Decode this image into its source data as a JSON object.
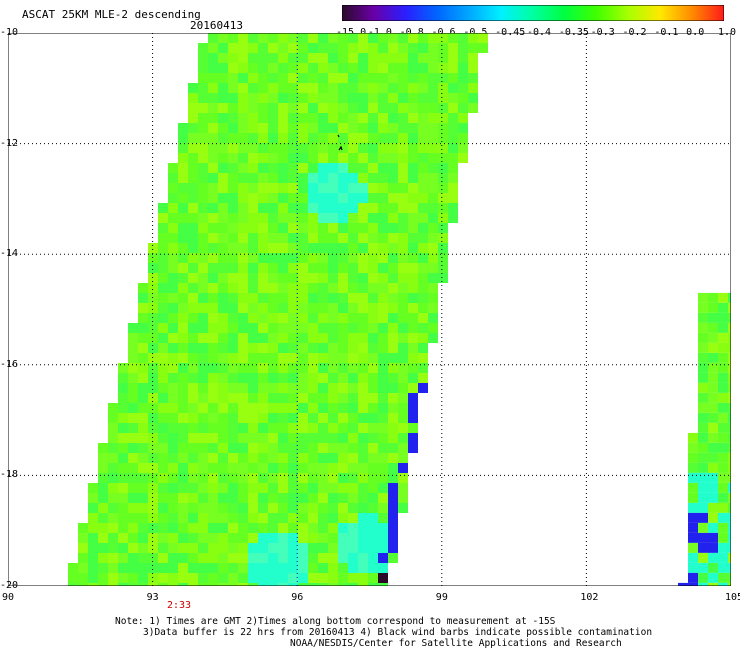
{
  "header": {
    "title": "ASCAT 25KM MLE-2 descending",
    "date": "20160413"
  },
  "colorbar": {
    "labels": [
      "-15.0",
      "-1.0",
      "-0.8",
      "-0.6",
      "-0.5",
      "-0.45",
      "-0.4",
      "-0.35",
      "-0.3",
      "-0.2",
      "-0.1",
      "0.0",
      "1.0"
    ],
    "colors": [
      "#2a0a28",
      "#6a00a8",
      "#2a1fff",
      "#0066ff",
      "#00a8ff",
      "#00f0ff",
      "#00ffa0",
      "#00ff40",
      "#40ff00",
      "#a8ff00",
      "#ffe800",
      "#ff8a00",
      "#ff1a1a"
    ]
  },
  "map": {
    "x_ticks": [
      "90",
      "93",
      "96",
      "99",
      "102",
      "105"
    ],
    "y_ticks": [
      "-10",
      "-12",
      "-14",
      "-16",
      "-18",
      "-20"
    ],
    "lon_range": [
      90,
      105
    ],
    "lat_range": [
      -20,
      -10
    ],
    "pass_time": "2:33",
    "swath_colors": {
      "main": "#66ff22",
      "light": "#99ff11",
      "cyan": "#22ffcc",
      "blue": "#2222ee",
      "dark": "#2a0a28"
    }
  },
  "notes": {
    "line1": "Note: 1) Times are GMT 2)Times along bottom correspond to measurement at -15S",
    "line2": "3)Data buffer is 22 hrs from 20160413 4) Black wind barbs indicate possible contamination",
    "line3": "NOAA/NESDIS/Center for Satellite Applications and Research"
  }
}
